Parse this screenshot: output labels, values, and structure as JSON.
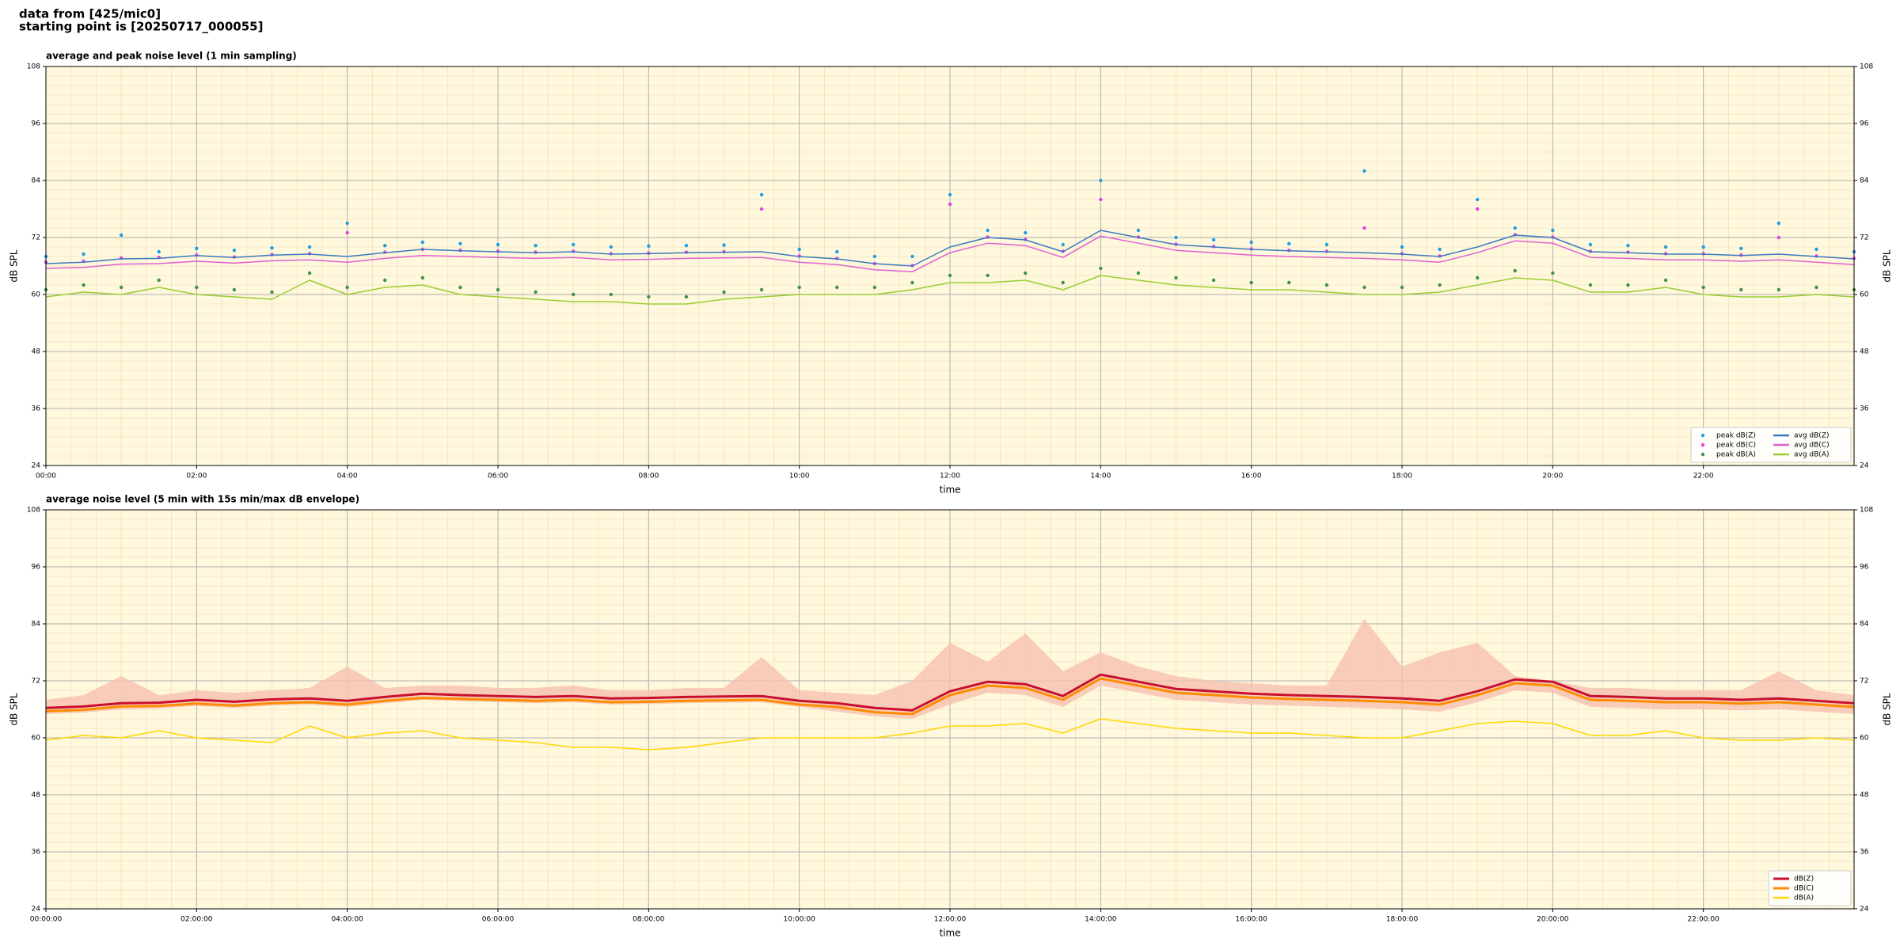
{
  "header": [
    "data from [425/mic0]",
    "starting point is [20250717_000055]"
  ],
  "chart_data": [
    {
      "type": "line",
      "title": "average and peak noise level (1 min sampling)",
      "xlabel": "time",
      "ylabel": "dB SPL",
      "background": "#fff8dc",
      "grid": true,
      "legend": "lower right",
      "legend_columns": 2,
      "x": [
        0,
        0.5,
        1,
        1.5,
        2,
        2.5,
        3,
        3.5,
        4,
        4.5,
        5,
        5.5,
        6,
        6.5,
        7,
        7.5,
        8,
        8.5,
        9,
        9.5,
        10,
        10.5,
        11,
        11.5,
        12,
        12.5,
        13,
        13.5,
        14,
        14.5,
        15,
        15.5,
        16,
        16.5,
        17,
        17.5,
        18,
        18.5,
        19,
        19.5,
        20,
        20.5,
        21,
        21.5,
        22,
        22.5,
        23,
        23.5,
        24
      ],
      "xlim": [
        0,
        24
      ],
      "xticks": [
        {
          "value": 0,
          "label": "00:00"
        },
        {
          "value": 2,
          "label": "02:00"
        },
        {
          "value": 4,
          "label": "04:00"
        },
        {
          "value": 6,
          "label": "06:00"
        },
        {
          "value": 8,
          "label": "08:00"
        },
        {
          "value": 10,
          "label": "10:00"
        },
        {
          "value": 12,
          "label": "12:00"
        },
        {
          "value": 14,
          "label": "14:00"
        },
        {
          "value": 16,
          "label": "16:00"
        },
        {
          "value": 18,
          "label": "18:00"
        },
        {
          "value": 20,
          "label": "20:00"
        },
        {
          "value": 22,
          "label": "22:00"
        }
      ],
      "ylim": [
        24,
        108
      ],
      "yticks": [
        24,
        36,
        48,
        60,
        72,
        84,
        96,
        108
      ],
      "series": [
        {
          "name": "peak dB(Z)",
          "style": "dots",
          "color": "#1f9de0",
          "values": [
            68,
            68.5,
            72.5,
            69,
            69.7,
            69.3,
            69.8,
            70,
            75,
            70.3,
            71,
            70.7,
            70.5,
            70.3,
            70.5,
            70,
            70.2,
            70.3,
            70.4,
            81,
            69.5,
            69,
            68,
            68,
            81,
            73.5,
            73,
            70.5,
            84,
            73.5,
            72,
            71.5,
            71,
            70.7,
            70.5,
            86,
            70,
            69.5,
            80,
            74,
            73.5,
            70.5,
            70.3,
            70,
            70,
            69.7,
            75,
            69.5,
            69
          ]
        },
        {
          "name": "peak dB(C)",
          "style": "dots",
          "color": "#e040e0",
          "values": [
            66.8,
            67,
            67.7,
            67.8,
            68.3,
            67.9,
            68.4,
            68.6,
            73,
            68.9,
            69.5,
            69.3,
            69.1,
            68.9,
            69.1,
            68.6,
            68.7,
            68.9,
            69,
            78,
            68.1,
            67.6,
            66.5,
            66.1,
            79,
            72.1,
            71.6,
            69.1,
            80,
            72.1,
            70.6,
            70.1,
            69.6,
            69.3,
            69.1,
            74,
            68.6,
            68.1,
            78,
            72.6,
            72.1,
            69.1,
            68.9,
            68.6,
            68.6,
            68.3,
            72,
            68.1,
            67.6
          ]
        },
        {
          "name": "peak dB(A)",
          "style": "dots",
          "color": "#3f8f4f",
          "values": [
            61,
            62,
            61.5,
            63,
            61.5,
            61,
            60.5,
            64.5,
            61.5,
            63,
            63.5,
            61.5,
            61,
            60.5,
            60,
            60,
            59.5,
            59.5,
            60.5,
            61,
            61.5,
            61.5,
            61.5,
            62.5,
            64,
            64,
            64.5,
            62.5,
            65.5,
            64.5,
            63.5,
            63,
            62.5,
            62.5,
            62,
            61.5,
            61.5,
            62,
            63.5,
            65,
            64.5,
            62,
            62,
            63,
            61.5,
            61,
            61,
            61.5,
            61
          ]
        },
        {
          "name": "avg dB(Z)",
          "style": "line",
          "color": "#3a7abf",
          "values": [
            66.5,
            66.8,
            67.5,
            67.6,
            68.2,
            67.8,
            68.3,
            68.5,
            68.0,
            68.8,
            69.5,
            69.2,
            69.0,
            68.8,
            69.0,
            68.5,
            68.6,
            68.8,
            68.9,
            69.0,
            68.0,
            67.5,
            66.5,
            66.0,
            70.0,
            72.0,
            71.5,
            69.0,
            73.5,
            72.0,
            70.5,
            70.0,
            69.5,
            69.2,
            69.0,
            68.8,
            68.5,
            68.0,
            70.0,
            72.5,
            72.0,
            69.0,
            68.8,
            68.5,
            68.5,
            68.2,
            68.5,
            68.0,
            67.5
          ]
        },
        {
          "name": "avg dB(C)",
          "style": "line",
          "color": "#e060d0",
          "values": [
            65.5,
            65.7,
            66.4,
            66.5,
            67.0,
            66.6,
            67.1,
            67.3,
            66.8,
            67.6,
            68.2,
            68.0,
            67.8,
            67.6,
            67.8,
            67.3,
            67.4,
            67.6,
            67.7,
            67.8,
            66.8,
            66.3,
            65.2,
            64.8,
            68.8,
            70.8,
            70.3,
            67.8,
            72.3,
            70.8,
            69.3,
            68.8,
            68.3,
            68.0,
            67.8,
            67.6,
            67.3,
            66.8,
            68.8,
            71.3,
            70.8,
            67.8,
            67.6,
            67.3,
            67.3,
            67.0,
            67.3,
            66.8,
            66.3
          ]
        },
        {
          "name": "avg dB(A)",
          "style": "line",
          "color": "#9acd32",
          "values": [
            59.5,
            60.5,
            60.0,
            61.5,
            60.0,
            59.5,
            59.0,
            63.0,
            60.0,
            61.5,
            62.0,
            60.0,
            59.5,
            59.0,
            58.5,
            58.5,
            58.0,
            58.0,
            59.0,
            59.5,
            60.0,
            60.0,
            60.0,
            61.0,
            62.5,
            62.5,
            63.0,
            61.0,
            64.0,
            63.0,
            62.0,
            61.5,
            61.0,
            61.0,
            60.5,
            60.0,
            60.0,
            60.5,
            62.0,
            63.5,
            63.0,
            60.5,
            60.5,
            61.5,
            60.0,
            59.5,
            59.5,
            60.0,
            59.5
          ]
        }
      ]
    },
    {
      "type": "line",
      "title": "average noise level (5 min with 15s min/max dB envelope)",
      "xlabel": "time",
      "ylabel": "dB SPL",
      "background": "#fff8dc",
      "grid": true,
      "legend": "lower right",
      "legend_columns": 1,
      "x": [
        0,
        0.5,
        1,
        1.5,
        2,
        2.5,
        3,
        3.5,
        4,
        4.5,
        5,
        5.5,
        6,
        6.5,
        7,
        7.5,
        8,
        8.5,
        9,
        9.5,
        10,
        10.5,
        11,
        11.5,
        12,
        12.5,
        13,
        13.5,
        14,
        14.5,
        15,
        15.5,
        16,
        16.5,
        17,
        17.5,
        18,
        18.5,
        19,
        19.5,
        20,
        20.5,
        21,
        21.5,
        22,
        22.5,
        23,
        23.5,
        24
      ],
      "xlim": [
        0,
        24
      ],
      "xticks": [
        {
          "value": 0,
          "label": "00:00:00"
        },
        {
          "value": 2,
          "label": "02:00:00"
        },
        {
          "value": 4,
          "label": "04:00:00"
        },
        {
          "value": 6,
          "label": "06:00:00"
        },
        {
          "value": 8,
          "label": "08:00:00"
        },
        {
          "value": 10,
          "label": "10:00:00"
        },
        {
          "value": 12,
          "label": "12:00:00"
        },
        {
          "value": 14,
          "label": "14:00:00"
        },
        {
          "value": 16,
          "label": "16:00:00"
        },
        {
          "value": 18,
          "label": "18:00:00"
        },
        {
          "value": 20,
          "label": "20:00:00"
        },
        {
          "value": 22,
          "label": "22:00:00"
        }
      ],
      "ylim": [
        24,
        108
      ],
      "yticks": [
        24,
        36,
        48,
        60,
        72,
        84,
        96,
        108
      ],
      "envelope": {
        "color": "#f6c0b0",
        "upper": [
          68,
          69,
          73,
          69,
          70,
          69.5,
          70,
          70.5,
          75,
          70.5,
          71,
          71,
          70.5,
          70.5,
          71,
          70,
          70,
          70.5,
          70.5,
          77,
          70,
          69.5,
          69,
          72,
          80,
          76,
          82,
          74,
          78,
          75,
          73,
          72,
          71.5,
          71,
          71,
          85,
          75,
          78,
          80,
          73,
          72,
          70.5,
          70.5,
          70,
          70,
          70,
          74,
          70,
          69
        ],
        "lower": [
          65,
          65.3,
          66,
          66.2,
          66.7,
          66.3,
          66.8,
          67,
          66.5,
          67.3,
          68,
          67.7,
          67.5,
          67.3,
          67.5,
          67,
          67.1,
          67.3,
          67.4,
          67.5,
          66.5,
          65.5,
          64.5,
          64,
          67,
          69.5,
          69,
          66.5,
          71,
          69.5,
          68,
          67.5,
          67,
          66.8,
          66.5,
          66.3,
          66,
          65.5,
          67.5,
          70,
          69.5,
          66.5,
          66.3,
          66,
          66,
          65.8,
          66,
          65.5,
          65
        ]
      },
      "series": [
        {
          "name": "dB(Z)",
          "style": "line",
          "width": 3,
          "color": "#c8102e",
          "values": [
            66.3,
            66.6,
            67.3,
            67.4,
            68.0,
            67.6,
            68.1,
            68.3,
            67.8,
            68.6,
            69.3,
            69.0,
            68.8,
            68.6,
            68.8,
            68.3,
            68.4,
            68.6,
            68.7,
            68.8,
            67.8,
            67.3,
            66.3,
            65.8,
            69.8,
            71.8,
            71.3,
            68.8,
            73.3,
            71.8,
            70.3,
            69.8,
            69.3,
            69.0,
            68.8,
            68.6,
            68.3,
            67.8,
            69.8,
            72.3,
            71.8,
            68.8,
            68.6,
            68.3,
            68.3,
            68.0,
            68.3,
            67.8,
            67.3
          ]
        },
        {
          "name": "dB(C)",
          "style": "line",
          "width": 3,
          "color": "#ff8c00",
          "values": [
            65.6,
            65.9,
            66.6,
            66.7,
            67.2,
            66.8,
            67.3,
            67.5,
            67.0,
            67.8,
            68.4,
            68.2,
            68.0,
            67.8,
            68.0,
            67.5,
            67.6,
            67.8,
            67.9,
            68.0,
            67.0,
            66.5,
            65.4,
            65.0,
            69.0,
            71.0,
            70.5,
            68.0,
            72.5,
            71.0,
            69.5,
            69.0,
            68.5,
            68.2,
            68.0,
            67.8,
            67.5,
            67.0,
            69.0,
            71.5,
            71.0,
            68.0,
            67.8,
            67.5,
            67.5,
            67.2,
            67.5,
            67.0,
            66.5
          ]
        },
        {
          "name": "dB(A)",
          "style": "line",
          "width": 1.5,
          "color": "#ffd700",
          "values": [
            59.5,
            60.5,
            60.0,
            61.5,
            60.0,
            59.5,
            59.0,
            62.5,
            60.0,
            61.0,
            61.5,
            60.0,
            59.5,
            59.0,
            58.0,
            58.0,
            57.5,
            58.0,
            59.0,
            60.0,
            60.0,
            60.0,
            60.0,
            61.0,
            62.5,
            62.5,
            63.0,
            61.0,
            64.0,
            63.0,
            62.0,
            61.5,
            61.0,
            61.0,
            60.5,
            60.0,
            60.0,
            61.5,
            63.0,
            63.5,
            63.0,
            60.5,
            60.5,
            61.5,
            60.0,
            59.5,
            59.5,
            60.0,
            59.5
          ]
        }
      ]
    }
  ]
}
